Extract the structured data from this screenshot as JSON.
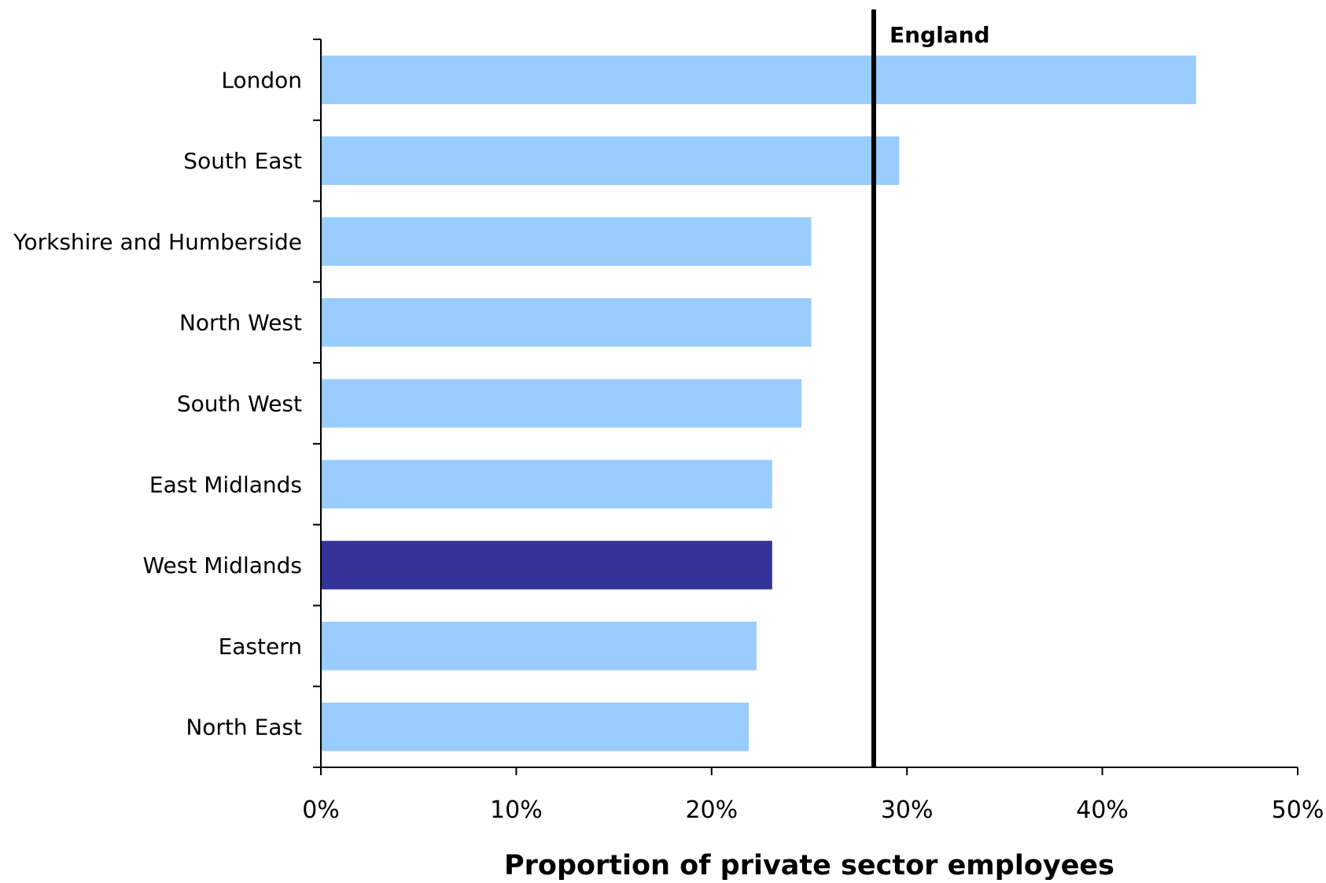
{
  "chart_data": {
    "type": "bar",
    "orientation": "horizontal",
    "title": "",
    "xlabel": "Proportion of private sector employees",
    "ylabel": "",
    "xlim": [
      0,
      0.5
    ],
    "x_ticks": [
      0,
      0.1,
      0.2,
      0.3,
      0.4,
      0.5
    ],
    "x_tick_labels": [
      "0%",
      "10%",
      "20%",
      "30%",
      "40%",
      "50%"
    ],
    "categories": [
      "London",
      "South East",
      "Yorkshire and Humberside",
      "North West",
      "South West",
      "East Midlands",
      "West Midlands",
      "Eastern",
      "North East"
    ],
    "values": [
      0.448,
      0.296,
      0.251,
      0.251,
      0.246,
      0.231,
      0.231,
      0.223,
      0.219
    ],
    "highlight_category": "West Midlands",
    "reference_line": {
      "label": "England",
      "value": 0.283
    },
    "colors": {
      "bar": "#99ccff",
      "highlight": "#333399",
      "reference_line": "#000000",
      "axis": "#000000"
    },
    "grid": false,
    "legend": "none"
  }
}
